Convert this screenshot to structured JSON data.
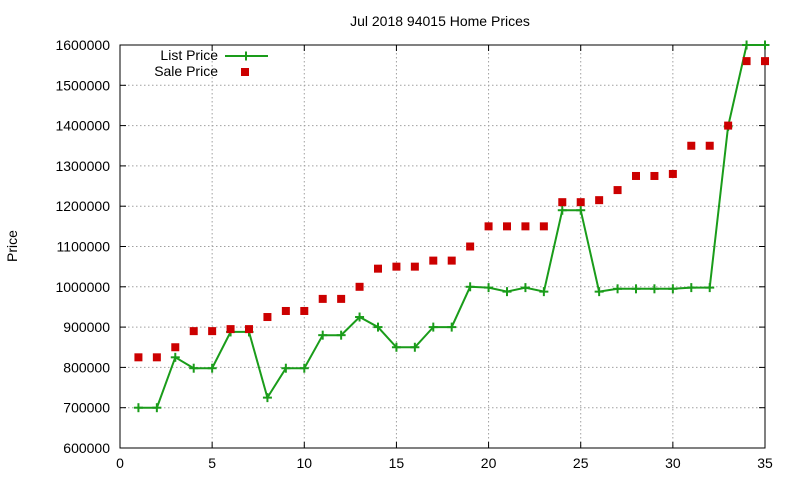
{
  "chart_data": {
    "type": "line",
    "title": "Jul 2018 94015 Home Prices",
    "xlabel": "",
    "ylabel": "Price",
    "xlim": [
      0,
      35
    ],
    "ylim": [
      600000,
      1600000
    ],
    "xticks": [
      0,
      5,
      10,
      15,
      20,
      25,
      30,
      35
    ],
    "yticks": [
      600000,
      700000,
      800000,
      900000,
      1000000,
      1100000,
      1200000,
      1300000,
      1400000,
      1500000,
      1600000
    ],
    "grid": true,
    "legend_position": "top-left",
    "x": [
      1,
      2,
      3,
      4,
      5,
      6,
      7,
      8,
      9,
      10,
      11,
      12,
      13,
      14,
      15,
      16,
      17,
      18,
      19,
      20,
      21,
      22,
      23,
      24,
      25,
      26,
      27,
      28,
      29,
      30,
      31,
      32,
      33,
      34,
      35
    ],
    "series": [
      {
        "name": "List Price",
        "style": "line-plus",
        "color": "#1a9c1a",
        "values": [
          700000,
          700000,
          825000,
          798000,
          798000,
          888000,
          888000,
          725000,
          798000,
          798000,
          880000,
          880000,
          925000,
          900000,
          850000,
          850000,
          900000,
          900000,
          1000000,
          998000,
          988000,
          998000,
          988000,
          1190000,
          1190000,
          988000,
          995000,
          995000,
          995000,
          995000,
          998000,
          998000,
          1398000,
          1600000,
          1600000
        ]
      },
      {
        "name": "Sale Price",
        "style": "square",
        "color": "#cc0000",
        "values": [
          825000,
          825000,
          850000,
          890000,
          890000,
          895000,
          895000,
          925000,
          940000,
          940000,
          970000,
          970000,
          1000000,
          1045000,
          1050000,
          1050000,
          1065000,
          1065000,
          1100000,
          1150000,
          1150000,
          1150000,
          1150000,
          1210000,
          1210000,
          1215000,
          1240000,
          1275000,
          1275000,
          1280000,
          1350000,
          1350000,
          1400000,
          1560000,
          1560000
        ]
      }
    ]
  }
}
